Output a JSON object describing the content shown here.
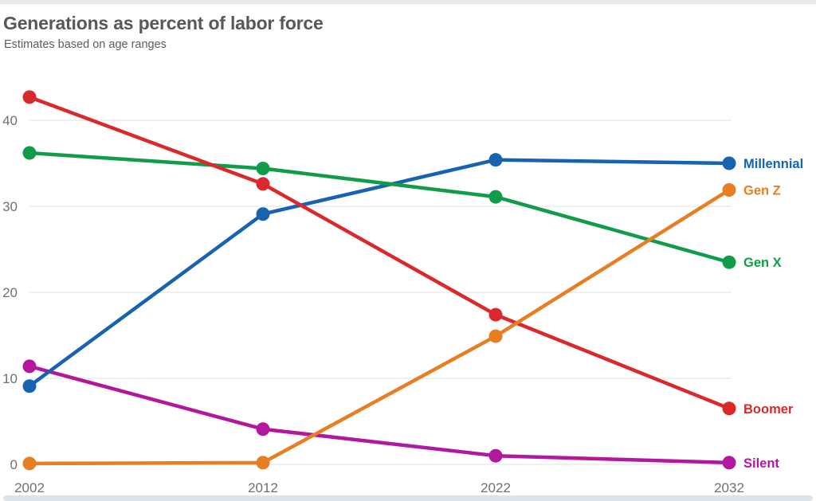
{
  "header": {
    "title": "Generations as percent of labor force",
    "subtitle": "Estimates based on age ranges"
  },
  "chart_data": {
    "type": "line",
    "title": "Generations as percent of labor force",
    "subtitle": "Estimates based on age ranges",
    "xlabel": "",
    "ylabel": "",
    "x": [
      2002,
      2012,
      2022,
      2032
    ],
    "x_tick_labels": [
      "2002",
      "2012",
      "2022",
      "2032"
    ],
    "y_ticks": [
      0,
      10,
      20,
      30,
      40
    ],
    "y_tick_labels": [
      "0",
      "10",
      "20",
      "30",
      "40"
    ],
    "ylim": [
      0,
      44
    ],
    "grid": "horizontal-only",
    "legend_position": "right-end-labels",
    "draw_order": [
      "Silent",
      "Millennial",
      "Gen X",
      "Boomer",
      "Gen Z"
    ],
    "series": [
      {
        "name": "Millennial",
        "color": "#1763af",
        "values": [
          9.1,
          29.1,
          35.4,
          35.0
        ]
      },
      {
        "name": "Gen Z",
        "color": "#e87e22",
        "values": [
          0.1,
          0.2,
          14.9,
          31.9
        ]
      },
      {
        "name": "Gen X",
        "color": "#119c49",
        "values": [
          36.2,
          34.4,
          31.1,
          23.5
        ]
      },
      {
        "name": "Boomer",
        "color": "#d9292b",
        "values": [
          42.7,
          32.6,
          17.4,
          6.5
        ]
      },
      {
        "name": "Silent",
        "color": "#b3179d",
        "values": [
          11.4,
          4.1,
          1.0,
          0.2
        ]
      }
    ]
  },
  "colors": {
    "gridline": "#e7e7e7",
    "tick_text": "#6f7072",
    "title_text": "#58585a",
    "top_strip": "#ebebeb",
    "bottom_strip": "#dde3ea"
  }
}
